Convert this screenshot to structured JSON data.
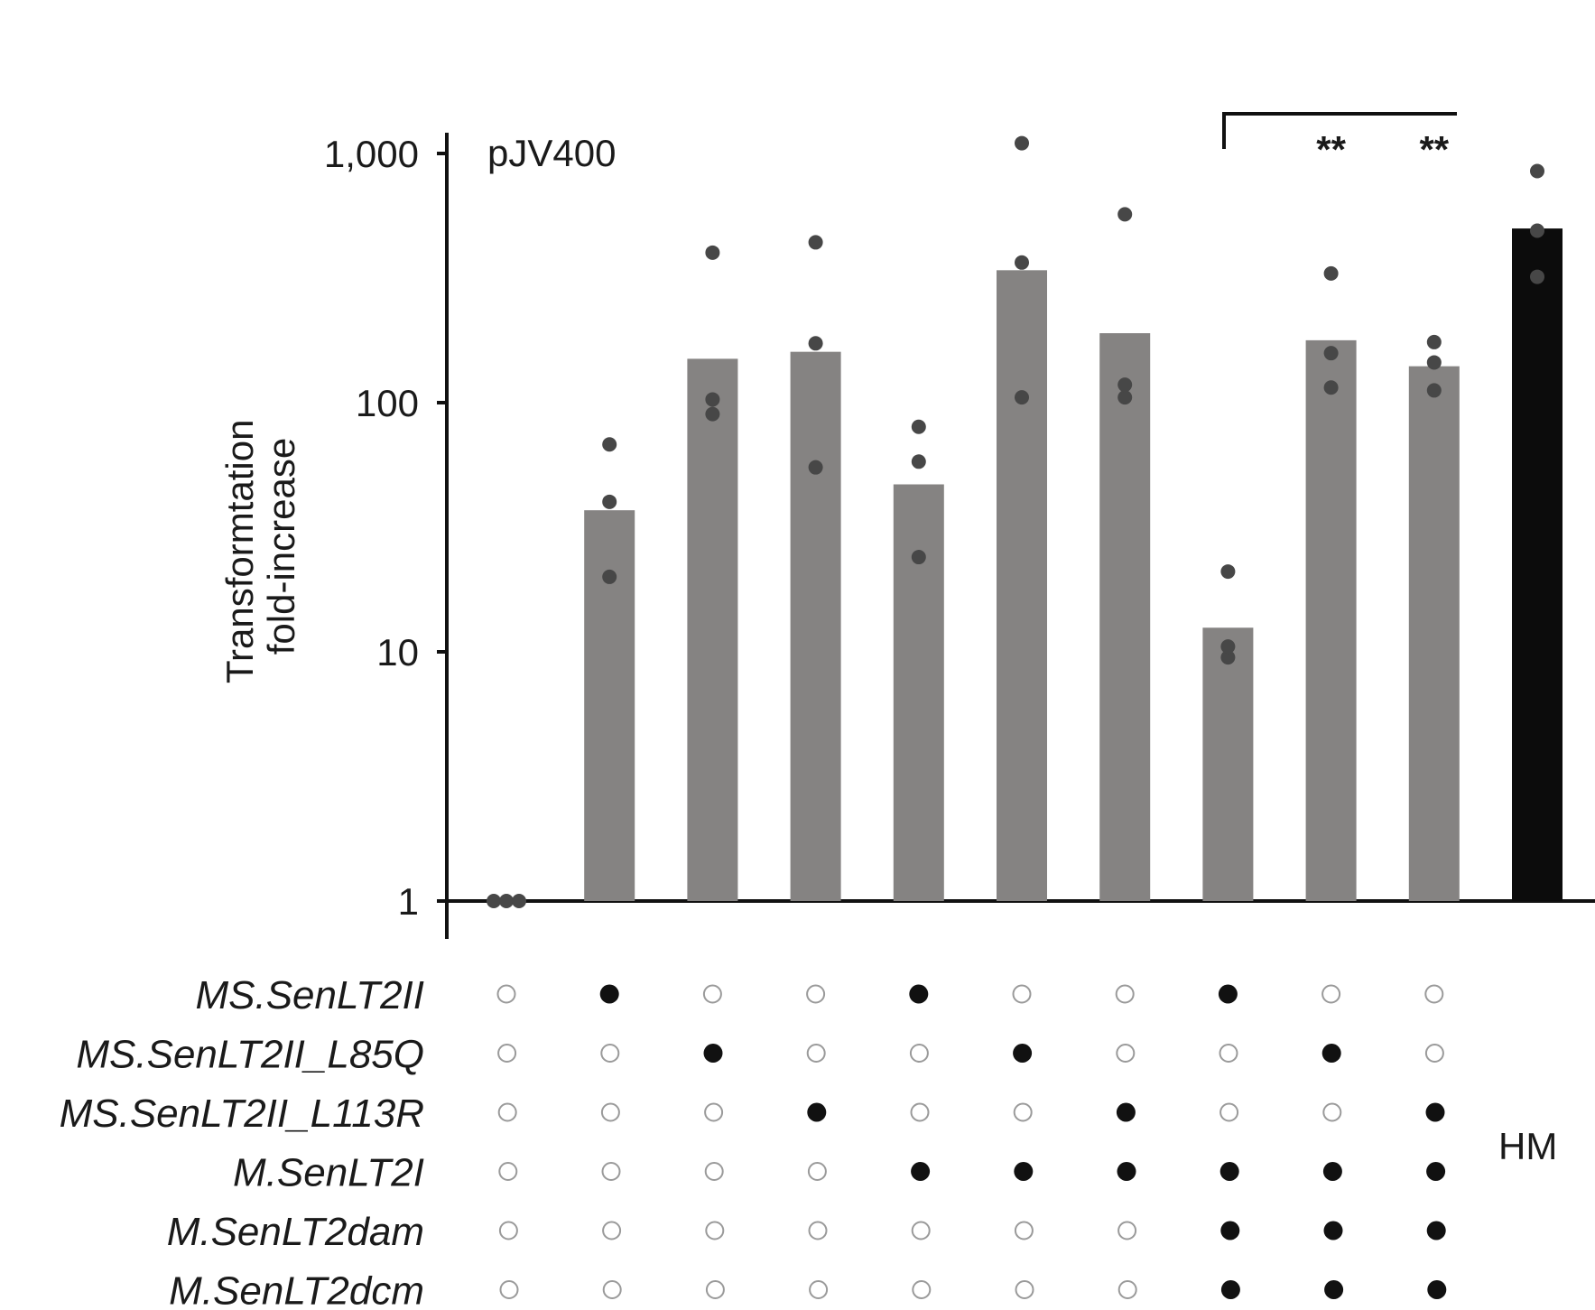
{
  "chart_data": {
    "type": "bar",
    "title": "pJV400",
    "ylabel_lines": [
      "Transformtation",
      "fold-increase"
    ],
    "yscale": "log",
    "ylim": [
      1,
      1000
    ],
    "y_ticks": [
      1,
      10,
      100,
      1000
    ],
    "y_tick_labels": [
      "1",
      "10",
      "100",
      "1,000"
    ],
    "series": [
      {
        "values": [
          1,
          37,
          150,
          160,
          47,
          340,
          190,
          12.5,
          178,
          140,
          500
        ]
      }
    ],
    "points": [
      [
        1,
        1,
        1
      ],
      [
        20,
        40,
        68
      ],
      [
        90,
        103,
        400
      ],
      [
        55,
        173,
        440
      ],
      [
        24,
        58,
        80
      ],
      [
        105,
        365,
        1100
      ],
      [
        105,
        118,
        570
      ],
      [
        9.5,
        10.5,
        21
      ],
      [
        115,
        158,
        330
      ],
      [
        112,
        145,
        175
      ],
      [
        320,
        490,
        850
      ]
    ],
    "bar_colors": [
      "#858382",
      "#858382",
      "#858382",
      "#858382",
      "#858382",
      "#858382",
      "#858382",
      "#858382",
      "#858382",
      "#858382",
      "#0c0c0c"
    ],
    "point_color": "#474747",
    "significance": {
      "groups": [
        7,
        8,
        9
      ],
      "labels": [
        "",
        "**",
        "**"
      ]
    },
    "matrix": {
      "rows": [
        {
          "label": "MS.SenLT2II",
          "present": [
            0,
            1,
            0,
            0,
            1,
            0,
            0,
            1,
            0,
            0
          ]
        },
        {
          "label": "MS.SenLT2II_L85Q",
          "present": [
            0,
            0,
            1,
            0,
            0,
            1,
            0,
            0,
            1,
            0
          ]
        },
        {
          "label": "MS.SenLT2II_L113R",
          "present": [
            0,
            0,
            0,
            1,
            0,
            0,
            1,
            0,
            0,
            1
          ]
        },
        {
          "label": "M.SenLT2I",
          "present": [
            0,
            0,
            0,
            0,
            1,
            1,
            1,
            1,
            1,
            1
          ]
        },
        {
          "label": "M.SenLT2dam",
          "present": [
            0,
            0,
            0,
            0,
            0,
            0,
            0,
            1,
            1,
            1
          ]
        },
        {
          "label": "M.SenLT2dcm",
          "present": [
            0,
            0,
            0,
            0,
            0,
            0,
            0,
            1,
            1,
            1
          ]
        }
      ],
      "last_group_label": "HM"
    }
  }
}
